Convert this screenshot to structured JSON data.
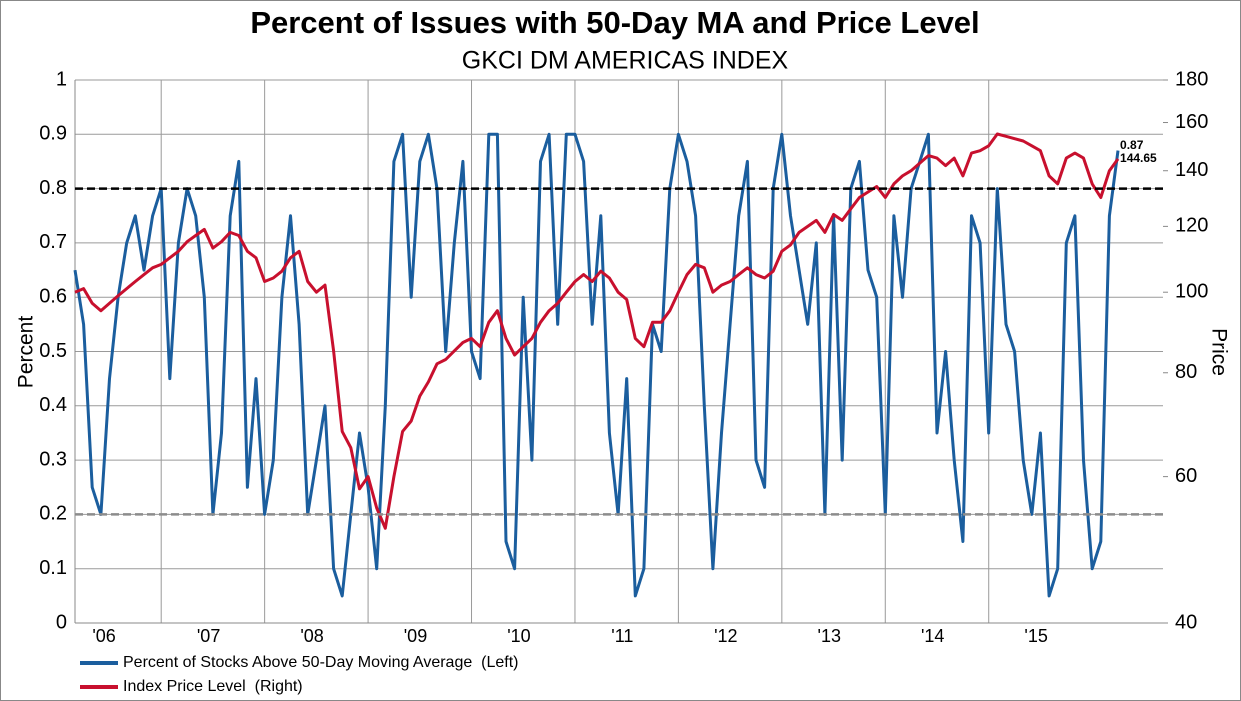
{
  "chart_data": {
    "type": "line",
    "title": "Percent of Issues with 50-Day MA and Price Level",
    "subtitle": "GKCI DM AMERICAS INDEX",
    "ylabel": "Percent",
    "y2label": "Price",
    "categories": [
      "'06",
      null,
      null,
      null,
      null,
      null,
      null,
      null,
      null,
      null,
      "'07",
      null,
      null,
      null,
      null,
      null,
      null,
      null,
      null,
      null,
      null,
      null,
      "'08",
      null,
      null,
      null,
      null,
      null,
      null,
      null,
      null,
      null,
      null,
      null,
      "'09",
      null,
      null,
      null,
      null,
      null,
      null,
      null,
      null,
      null,
      null,
      null,
      "'10",
      null,
      null,
      null,
      null,
      null,
      null,
      null,
      null,
      null,
      null,
      null,
      "'11",
      null,
      null,
      null,
      null,
      null,
      null,
      null,
      null,
      null,
      null,
      null,
      "'12",
      null,
      null,
      null,
      null,
      null,
      null,
      null,
      null,
      null,
      null,
      null,
      "'13",
      null,
      null,
      null,
      null,
      null,
      null,
      null,
      null,
      null,
      null,
      null,
      "'14",
      null,
      null,
      null,
      null,
      null,
      null,
      null,
      null,
      null,
      null,
      null,
      "'15",
      null,
      null,
      null,
      null,
      null,
      null,
      null,
      null,
      null,
      null,
      null,
      null,
      null,
      null,
      null
    ],
    "series": [
      {
        "name": "Percent of Stocks Above 50-Day Moving Average  (Left)",
        "color": "#1b5e9e",
        "axis": "y",
        "values": [
          0.65,
          0.55,
          0.25,
          0.2,
          0.45,
          0.6,
          0.7,
          0.75,
          0.65,
          0.75,
          0.8,
          0.45,
          0.7,
          0.8,
          0.75,
          0.6,
          0.2,
          0.35,
          0.75,
          0.85,
          0.25,
          0.45,
          0.2,
          0.3,
          0.6,
          0.75,
          0.55,
          0.2,
          0.3,
          0.4,
          0.1,
          0.05,
          0.2,
          0.35,
          0.25,
          0.1,
          0.4,
          0.85,
          0.9,
          0.6,
          0.85,
          0.9,
          0.8,
          0.5,
          0.7,
          0.85,
          0.5,
          0.45,
          0.9,
          0.9,
          0.15,
          0.1,
          0.6,
          0.3,
          0.85,
          0.9,
          0.55,
          0.9,
          0.9,
          0.85,
          0.55,
          0.75,
          0.35,
          0.2,
          0.45,
          0.05,
          0.1,
          0.55,
          0.5,
          0.8,
          0.9,
          0.85,
          0.75,
          0.4,
          0.1,
          0.35,
          0.55,
          0.75,
          0.85,
          0.3,
          0.25,
          0.8,
          0.9,
          0.75,
          0.65,
          0.55,
          0.7,
          0.2,
          0.75,
          0.3,
          0.8,
          0.85,
          0.65,
          0.6,
          0.2,
          0.75,
          0.6,
          0.8,
          0.85,
          0.9,
          0.35,
          0.5,
          0.3,
          0.15,
          0.75,
          0.7,
          0.35,
          0.8,
          0.55,
          0.5,
          0.3,
          0.2,
          0.35,
          0.05,
          0.1,
          0.7,
          0.75,
          0.3,
          0.1,
          0.15,
          0.75,
          0.87
        ]
      },
      {
        "name": "Index Price Level  (Right)",
        "color": "#c8102e",
        "axis": "y2",
        "values": [
          100,
          101,
          97,
          95,
          97,
          99,
          101,
          103,
          105,
          107,
          108,
          110,
          112,
          115,
          117,
          119,
          113,
          115,
          118,
          117,
          112,
          110,
          103,
          104,
          106,
          110,
          112,
          103,
          100,
          102,
          85,
          68,
          65,
          58,
          60,
          55,
          52,
          60,
          68,
          70,
          75,
          78,
          82,
          83,
          85,
          87,
          88,
          86,
          92,
          95,
          88,
          84,
          86,
          88,
          92,
          95,
          97,
          100,
          103,
          105,
          103,
          106,
          104,
          100,
          98,
          88,
          86,
          92,
          92,
          95,
          100,
          105,
          108,
          107,
          100,
          102,
          103,
          105,
          107,
          105,
          104,
          106,
          112,
          114,
          118,
          120,
          122,
          118,
          124,
          122,
          126,
          130,
          132,
          134,
          130,
          135,
          138,
          140,
          143,
          146,
          145,
          142,
          145,
          138,
          147,
          148,
          150,
          155,
          154,
          153,
          152,
          150,
          148,
          138,
          135,
          145,
          147,
          145,
          135,
          130,
          140,
          144.65
        ]
      }
    ],
    "ylim": [
      0,
      1
    ],
    "yticks": [
      0,
      0.1,
      0.2,
      0.3,
      0.4,
      0.5,
      0.6,
      0.7,
      0.8,
      0.9,
      1
    ],
    "y2lim": [
      40,
      180
    ],
    "y2ticks": [
      40,
      60,
      80,
      100,
      120,
      140,
      160,
      180
    ],
    "y2scale": "log",
    "grid": true,
    "reference_lines": [
      {
        "value": 0.8,
        "color": "#000000"
      },
      {
        "value": 0.2,
        "color": "#8c8c8c"
      }
    ],
    "legend": "bottom-left"
  }
}
